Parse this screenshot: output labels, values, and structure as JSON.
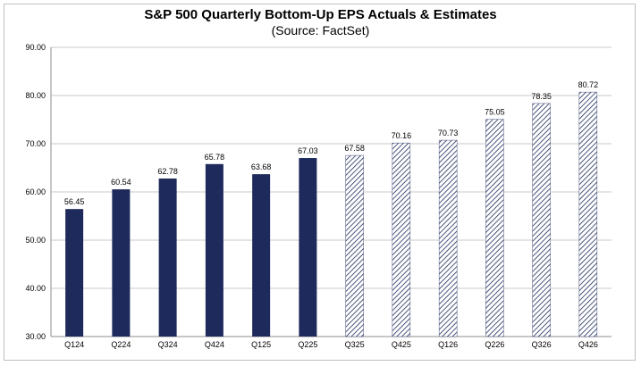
{
  "chart_data": {
    "type": "bar",
    "title": "S&P 500 Quarterly Bottom-Up EPS Actuals & Estimates",
    "subtitle": "(Source: FactSet)",
    "xlabel": "",
    "ylabel": "",
    "ylim": [
      30,
      90
    ],
    "yticks": [
      "30.00",
      "40.00",
      "50.00",
      "60.00",
      "70.00",
      "80.00",
      "90.00"
    ],
    "grid": true,
    "categories": [
      "Q124",
      "Q224",
      "Q324",
      "Q424",
      "Q125",
      "Q225",
      "Q325",
      "Q425",
      "Q126",
      "Q226",
      "Q326",
      "Q426"
    ],
    "values": [
      56.45,
      60.54,
      62.78,
      65.78,
      63.68,
      67.03,
      67.58,
      70.16,
      70.73,
      75.05,
      78.35,
      80.72
    ],
    "value_labels": [
      "56.45",
      "60.54",
      "62.78",
      "65.78",
      "63.68",
      "67.03",
      "67.58",
      "70.16",
      "70.73",
      "75.05",
      "78.35",
      "80.72"
    ],
    "bar_kind": [
      "actual",
      "actual",
      "actual",
      "actual",
      "actual",
      "actual",
      "estimate",
      "estimate",
      "estimate",
      "estimate",
      "estimate",
      "estimate"
    ],
    "colors": {
      "actual": "#1f2a5c",
      "estimate": "#1f2a5c",
      "grid": "#c8c8c8",
      "axis": "#8c8c8c"
    }
  }
}
